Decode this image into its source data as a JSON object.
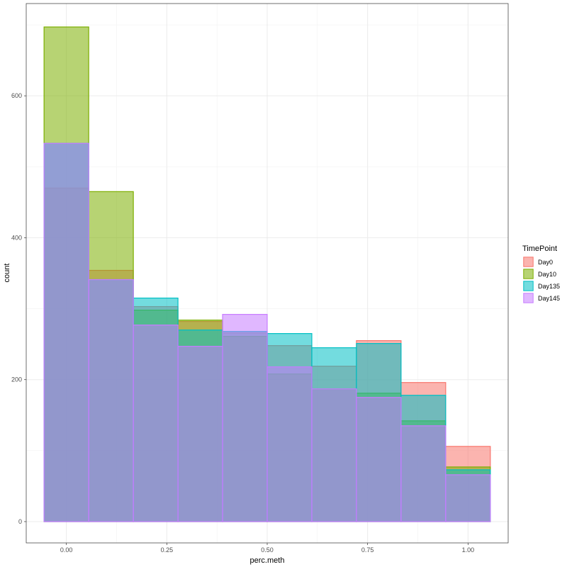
{
  "chart_data": {
    "type": "bar",
    "subtype": "overlapping-histogram",
    "xlabel": "perc.meth",
    "ylabel": "count",
    "xlim": [
      -0.1,
      1.1
    ],
    "ylim": [
      -30,
      730
    ],
    "x_ticks": [
      {
        "value": 0.0,
        "label": "0.00"
      },
      {
        "value": 0.25,
        "label": "0.25"
      },
      {
        "value": 0.5,
        "label": "0.50"
      },
      {
        "value": 0.75,
        "label": "0.75"
      },
      {
        "value": 1.0,
        "label": "1.00"
      }
    ],
    "y_ticks": [
      {
        "value": 0,
        "label": "0"
      },
      {
        "value": 200,
        "label": "200"
      },
      {
        "value": 400,
        "label": "400"
      },
      {
        "value": 600,
        "label": "600"
      }
    ],
    "bin_edges": [
      -0.0556,
      0.0556,
      0.1667,
      0.2778,
      0.3889,
      0.5,
      0.6111,
      0.7222,
      0.8333,
      0.9444,
      1.0556
    ],
    "grid": true,
    "legend": {
      "title": "TimePoint",
      "position": "right"
    },
    "series": [
      {
        "name": "Day0",
        "color": "#F8766D",
        "values": [
          470,
          354,
          303,
          282,
          266,
          248,
          219,
          255,
          196,
          106
        ]
      },
      {
        "name": "Day10",
        "color": "#7CAE00",
        "values": [
          697,
          465,
          298,
          284,
          261,
          208,
          187,
          181,
          142,
          77
        ]
      },
      {
        "name": "Day135",
        "color": "#00BFC4",
        "values": [
          533,
          341,
          315,
          270,
          268,
          265,
          245,
          251,
          178,
          73
        ]
      },
      {
        "name": "Day145",
        "color": "#C77CFF",
        "values": [
          533,
          341,
          277,
          247,
          292,
          218,
          187,
          175,
          135,
          66
        ]
      }
    ]
  }
}
